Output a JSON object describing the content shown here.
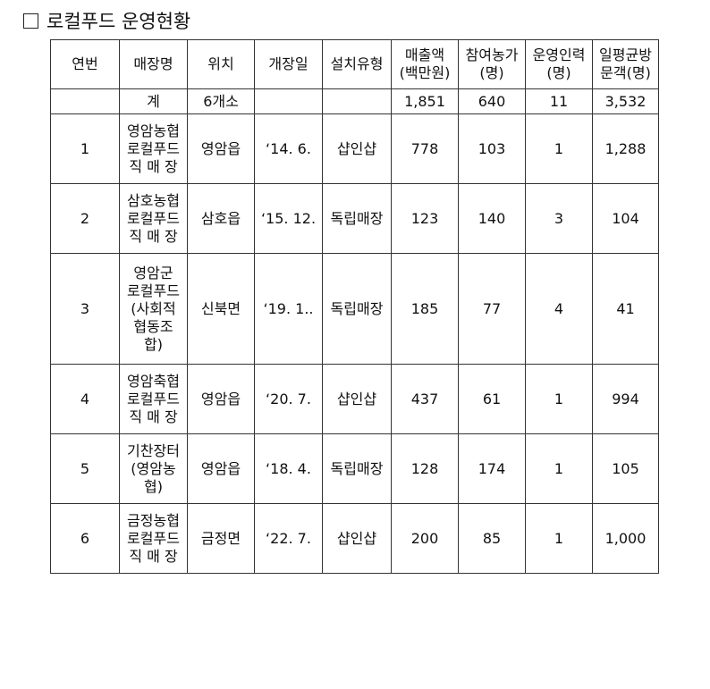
{
  "title": "로컬푸드 운영현황",
  "headers": [
    "연번",
    "매장명",
    "위치",
    "개장일",
    "설치유형",
    "매출액\n(백만원)",
    "참여농가\n(명)",
    "운영인력\n(명)",
    "일평균방\n문객(명)"
  ],
  "total": {
    "label": "계",
    "location": "6개소",
    "sales": "1,851",
    "farms": "640",
    "staff": "11",
    "visitors": "3,532"
  },
  "rows": [
    {
      "no": "1",
      "name": "영암농협\n로컬푸드\n직 매 장",
      "location": "영암읍",
      "opened": "‘14. 6.",
      "type": "샵인샵",
      "sales": "778",
      "farms": "103",
      "staff": "1",
      "visitors": "1,288"
    },
    {
      "no": "2",
      "name": "삼호농협\n로컬푸드\n직 매 장",
      "location": "삼호읍",
      "opened": "‘15. 12.",
      "type": "독립매장",
      "sales": "123",
      "farms": "140",
      "staff": "3",
      "visitors": "104"
    },
    {
      "no": "3",
      "name": "영암군\n로컬푸드\n(사회적\n협동조\n합)",
      "location": "신북면",
      "opened": "‘19. 1..",
      "type": "독립매장",
      "sales": "185",
      "farms": "77",
      "staff": "4",
      "visitors": "41"
    },
    {
      "no": "4",
      "name": "영암축협\n로컬푸드\n직 매 장",
      "location": "영암읍",
      "opened": "‘20. 7.",
      "type": "샵인샵",
      "sales": "437",
      "farms": "61",
      "staff": "1",
      "visitors": "994"
    },
    {
      "no": "5",
      "name": "기찬장터\n(영암농\n협)",
      "location": "영암읍",
      "opened": "‘18. 4.",
      "type": "독립매장",
      "sales": "128",
      "farms": "174",
      "staff": "1",
      "visitors": "105"
    },
    {
      "no": "6",
      "name": "금정농협\n로컬푸드\n직 매 장",
      "location": "금정면",
      "opened": "‘22. 7.",
      "type": "샵인샵",
      "sales": "200",
      "farms": "85",
      "staff": "1",
      "visitors": "1,000"
    }
  ]
}
